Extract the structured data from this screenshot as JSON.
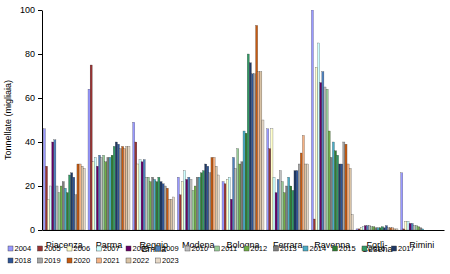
{
  "chart_data": {
    "type": "bar",
    "y_label": "Tonnellate (migliaia)",
    "categories": [
      "Piacenza",
      "Parma",
      "Reggio Emilia",
      "Modena",
      "Bologna",
      "Ferrara",
      "Ravenna",
      "Forlì-Cesena",
      "Rimini"
    ],
    "ylim": [
      0,
      100
    ],
    "yticks": [
      0,
      20,
      40,
      60,
      80,
      100
    ],
    "grid": false,
    "legend": "bottom",
    "series": [
      {
        "name": "2004",
        "color": "#9999ff",
        "values": [
          46,
          64,
          49,
          24,
          22,
          46,
          100,
          0.5,
          26
        ]
      },
      {
        "name": "2005",
        "color": "#993333",
        "values": [
          29,
          75,
          40,
          16,
          21,
          37,
          5,
          0.5,
          0.5
        ]
      },
      {
        "name": "2006",
        "color": "#ffffcc",
        "values": [
          14,
          31,
          30,
          22,
          23,
          46,
          74,
          1,
          4
        ]
      },
      {
        "name": "2007",
        "color": "#ccffff",
        "values": [
          20,
          33,
          32,
          27,
          24,
          24,
          85,
          1.5,
          4
        ]
      },
      {
        "name": "2008",
        "color": "#660066",
        "values": [
          40,
          29,
          31,
          23,
          14,
          17,
          67,
          2,
          3
        ]
      },
      {
        "name": "2009",
        "color": "#4f81bd",
        "values": [
          41,
          34,
          32,
          24,
          33,
          23,
          72,
          2,
          3
        ]
      },
      {
        "name": "2010",
        "color": "#c0c0c0",
        "values": [
          20,
          33,
          24,
          23,
          28,
          27,
          65,
          2,
          2
        ]
      },
      {
        "name": "2011",
        "color": "#99cc99",
        "values": [
          17,
          34,
          24,
          18,
          37,
          22,
          64,
          1.5,
          2
        ]
      },
      {
        "name": "2012",
        "color": "#70ad47",
        "values": [
          20,
          31,
          22,
          20,
          30,
          17,
          45,
          1.5,
          1.5
        ]
      },
      {
        "name": "2013",
        "color": "#7f7f7f",
        "values": [
          22,
          33,
          24,
          24,
          31,
          20,
          33,
          1,
          1
        ]
      },
      {
        "name": "2014",
        "color": "#4bacc6",
        "values": [
          19,
          33,
          23,
          24,
          45,
          24,
          40,
          1,
          0.5
        ]
      },
      {
        "name": "2015",
        "color": "#2e7d32",
        "values": [
          17,
          34,
          22,
          26,
          44,
          20,
          36,
          1,
          0
        ]
      },
      {
        "name": "2016",
        "color": "#339966",
        "values": [
          25,
          38,
          24,
          27,
          80,
          18,
          34,
          1.5,
          0
        ]
      },
      {
        "name": "2017",
        "color": "#1f3864",
        "values": [
          26,
          40,
          22,
          30,
          76,
          27,
          30,
          1,
          0
        ]
      },
      {
        "name": "2018",
        "color": "#2f5597",
        "values": [
          24,
          39,
          21,
          29,
          71,
          27,
          30,
          2,
          0
        ]
      },
      {
        "name": "2019",
        "color": "#a6a6a6",
        "values": [
          16,
          37,
          20,
          26,
          71,
          30,
          40,
          1,
          0
        ]
      },
      {
        "name": "2020",
        "color": "#c55a11",
        "values": [
          30,
          38,
          19,
          33,
          93,
          35,
          39,
          1,
          0
        ]
      },
      {
        "name": "2021",
        "color": "#f4b183",
        "values": [
          30,
          37,
          14,
          33,
          72,
          43,
          30,
          1,
          0
        ]
      },
      {
        "name": "2022",
        "color": "#d9c3a5",
        "values": [
          29,
          38,
          14,
          29,
          72,
          30,
          28,
          0.5,
          0
        ]
      },
      {
        "name": "2023",
        "color": "#e7d9c8",
        "values": [
          28,
          38,
          15,
          25,
          50,
          30,
          7,
          0.5,
          0
        ]
      }
    ]
  }
}
